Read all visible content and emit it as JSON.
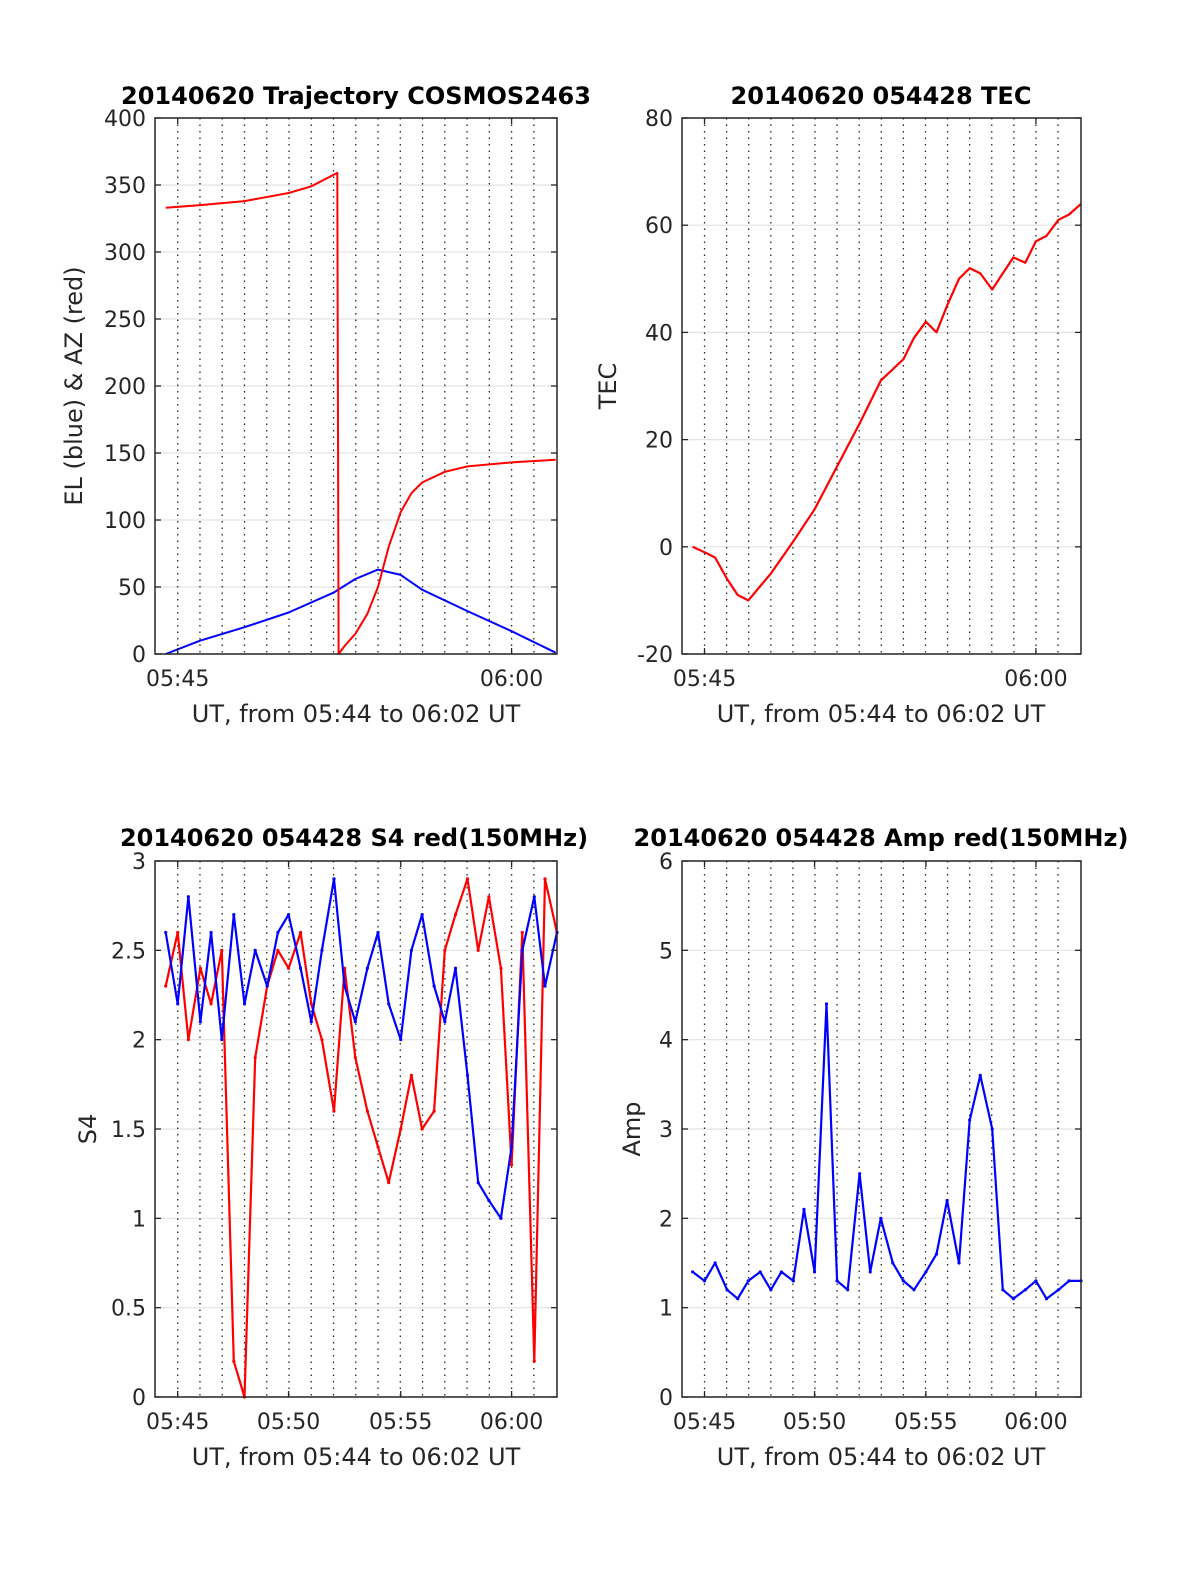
{
  "colors": {
    "el": "#0000ff",
    "az": "#ff0000",
    "tec": "#ff0000",
    "blue": "#0000ff",
    "red": "#ff0000"
  },
  "chart_data": [
    {
      "id": "traj",
      "type": "line",
      "title": "20140620 Trajectory COSMOS2463",
      "xlabel": "UT, from 05:44 to 06:02 UT",
      "ylabel": "EL (blue) & AZ (red)",
      "xlim": [
        5.733,
        6.034
      ],
      "ylim": [
        0,
        400
      ],
      "x_ticks": [
        5.75,
        6.0
      ],
      "x_tick_labels": [
        "05:45",
        "06:00"
      ],
      "y_ticks": [
        0,
        50,
        100,
        150,
        200,
        250,
        300,
        350,
        400
      ],
      "y_tick_labels": [
        "0",
        "50",
        "100",
        "150",
        "200",
        "250",
        "300",
        "350",
        "400"
      ],
      "grid": "dotted vertical lines every minute, light horizontal lines",
      "series": [
        {
          "color": "blue",
          "x": [
            5.741,
            5.767,
            5.8,
            5.833,
            5.867,
            5.883,
            5.9,
            5.917,
            5.933,
            5.967,
            6.0,
            6.033
          ],
          "y": [
            0,
            10,
            20,
            31,
            46,
            56,
            63,
            59,
            48,
            32,
            17,
            1
          ]
        },
        {
          "color": "red",
          "x": [
            5.741,
            5.767,
            5.8,
            5.833,
            5.85,
            5.8695,
            5.8705,
            5.875,
            5.883,
            5.892,
            5.9,
            5.908,
            5.917,
            5.925,
            5.933,
            5.95,
            5.967,
            6.0,
            6.033
          ],
          "y": [
            333,
            335,
            338,
            344,
            349,
            359,
            0,
            6,
            15,
            30,
            50,
            80,
            106,
            120,
            128,
            136,
            140,
            143,
            145
          ]
        }
      ]
    },
    {
      "id": "tec",
      "type": "line",
      "title": "20140620 054428 TEC",
      "xlabel": "UT, from 05:44 to 06:02 UT",
      "ylabel": "TEC",
      "xlim": [
        5.733,
        6.034
      ],
      "ylim": [
        -20,
        80
      ],
      "x_ticks": [
        5.75,
        6.0
      ],
      "x_tick_labels": [
        "05:45",
        "06:00"
      ],
      "y_ticks": [
        -20,
        0,
        20,
        40,
        60,
        80
      ],
      "y_tick_labels": [
        "-20",
        "0",
        "20",
        "40",
        "60",
        "80"
      ],
      "grid": "dotted vertical lines every minute, light horizontal lines",
      "series": [
        {
          "color": "red",
          "x": [
            5.741,
            5.75,
            5.758,
            5.767,
            5.775,
            5.783,
            5.8,
            5.817,
            5.833,
            5.85,
            5.867,
            5.883,
            5.9,
            5.908,
            5.917,
            5.925,
            5.933,
            5.942,
            5.95,
            5.958,
            5.967,
            5.975,
            5.983,
            5.992,
            6.0,
            6.008,
            6.017,
            6.025,
            6.034
          ],
          "y": [
            0,
            -1,
            -2,
            -6,
            -9,
            -10,
            -5,
            1,
            7,
            15,
            23,
            31,
            35,
            39,
            42,
            40,
            45,
            50,
            52,
            51,
            48,
            51,
            54,
            53,
            57,
            58,
            61,
            62,
            64
          ]
        }
      ]
    },
    {
      "id": "s4",
      "type": "line",
      "title": "20140620 054428 S4 red(150MHz)",
      "xlabel": "UT, from 05:44 to 06:02 UT",
      "ylabel": "S4",
      "xlim": [
        5.733,
        6.034
      ],
      "ylim": [
        0,
        3
      ],
      "x_ticks": [
        5.75,
        5.833,
        5.917,
        6.0
      ],
      "x_tick_labels": [
        "05:45",
        "05:50",
        "05:55",
        "06:00"
      ],
      "y_ticks": [
        0,
        0.5,
        1,
        1.5,
        2,
        2.5,
        3
      ],
      "y_tick_labels": [
        "0",
        "0.5",
        "1",
        "1.5",
        "2",
        "2.5",
        "3"
      ],
      "grid": "dotted vertical lines every minute, light horizontal lines",
      "series": [
        {
          "color": "red",
          "x": [
            5.741,
            5.75,
            5.758,
            5.767,
            5.775,
            5.783,
            5.792,
            5.8,
            5.808,
            5.817,
            5.825,
            5.833,
            5.842,
            5.85,
            5.858,
            5.867,
            5.875,
            5.883,
            5.892,
            5.9,
            5.908,
            5.917,
            5.925,
            5.933,
            5.942,
            5.95,
            5.958,
            5.967,
            5.975,
            5.983,
            5.992,
            6.0,
            6.008,
            6.017,
            6.025,
            6.034
          ],
          "y": [
            2.3,
            2.6,
            2.0,
            2.4,
            2.2,
            2.5,
            0.2,
            0.0,
            1.9,
            2.3,
            2.5,
            2.4,
            2.6,
            2.2,
            2.0,
            1.6,
            2.4,
            1.9,
            1.6,
            1.4,
            1.2,
            1.5,
            1.8,
            1.5,
            1.6,
            2.5,
            2.7,
            2.9,
            2.5,
            2.8,
            2.4,
            1.3,
            2.6,
            0.2,
            2.9,
            2.6
          ]
        },
        {
          "color": "blue",
          "x": [
            5.741,
            5.75,
            5.758,
            5.767,
            5.775,
            5.783,
            5.792,
            5.8,
            5.808,
            5.817,
            5.825,
            5.833,
            5.842,
            5.85,
            5.858,
            5.867,
            5.875,
            5.883,
            5.892,
            5.9,
            5.908,
            5.917,
            5.925,
            5.933,
            5.942,
            5.95,
            5.958,
            5.967,
            5.975,
            5.983,
            5.992,
            6.0,
            6.008,
            6.017,
            6.025,
            6.034
          ],
          "y": [
            2.6,
            2.2,
            2.8,
            2.1,
            2.6,
            2.0,
            2.7,
            2.2,
            2.5,
            2.3,
            2.6,
            2.7,
            2.4,
            2.1,
            2.5,
            2.9,
            2.3,
            2.1,
            2.4,
            2.6,
            2.2,
            2.0,
            2.5,
            2.7,
            2.3,
            2.1,
            2.4,
            1.8,
            1.2,
            1.1,
            1.0,
            1.4,
            2.5,
            2.8,
            2.3,
            2.6
          ]
        }
      ]
    },
    {
      "id": "amp",
      "type": "line",
      "title": "20140620 054428 Amp red(150MHz)",
      "xlabel": "UT, from 05:44 to 06:02 UT",
      "ylabel": "Amp",
      "xlim": [
        5.733,
        6.034
      ],
      "ylim": [
        0,
        6
      ],
      "x_ticks": [
        5.75,
        5.833,
        5.917,
        6.0
      ],
      "x_tick_labels": [
        "05:45",
        "05:50",
        "05:55",
        "06:00"
      ],
      "y_ticks": [
        0,
        1,
        2,
        3,
        4,
        5,
        6
      ],
      "y_tick_labels": [
        "0",
        "1",
        "2",
        "3",
        "4",
        "5",
        "6"
      ],
      "grid": "dotted vertical lines every minute, light horizontal lines",
      "series": [
        {
          "color": "blue",
          "x": [
            5.741,
            5.75,
            5.758,
            5.767,
            5.775,
            5.783,
            5.792,
            5.8,
            5.808,
            5.817,
            5.825,
            5.833,
            5.842,
            5.85,
            5.858,
            5.867,
            5.875,
            5.883,
            5.892,
            5.9,
            5.908,
            5.917,
            5.925,
            5.933,
            5.942,
            5.95,
            5.958,
            5.967,
            5.975,
            5.983,
            5.992,
            6.0,
            6.008,
            6.017,
            6.025,
            6.034
          ],
          "y": [
            1.4,
            1.3,
            1.5,
            1.2,
            1.1,
            1.3,
            1.4,
            1.2,
            1.4,
            1.3,
            2.1,
            1.4,
            4.4,
            1.3,
            1.2,
            2.5,
            1.4,
            2.0,
            1.5,
            1.3,
            1.2,
            1.4,
            1.6,
            2.2,
            1.5,
            3.1,
            3.6,
            3.0,
            1.2,
            1.1,
            1.2,
            1.3,
            1.1,
            1.2,
            1.3,
            1.3
          ]
        }
      ]
    }
  ]
}
